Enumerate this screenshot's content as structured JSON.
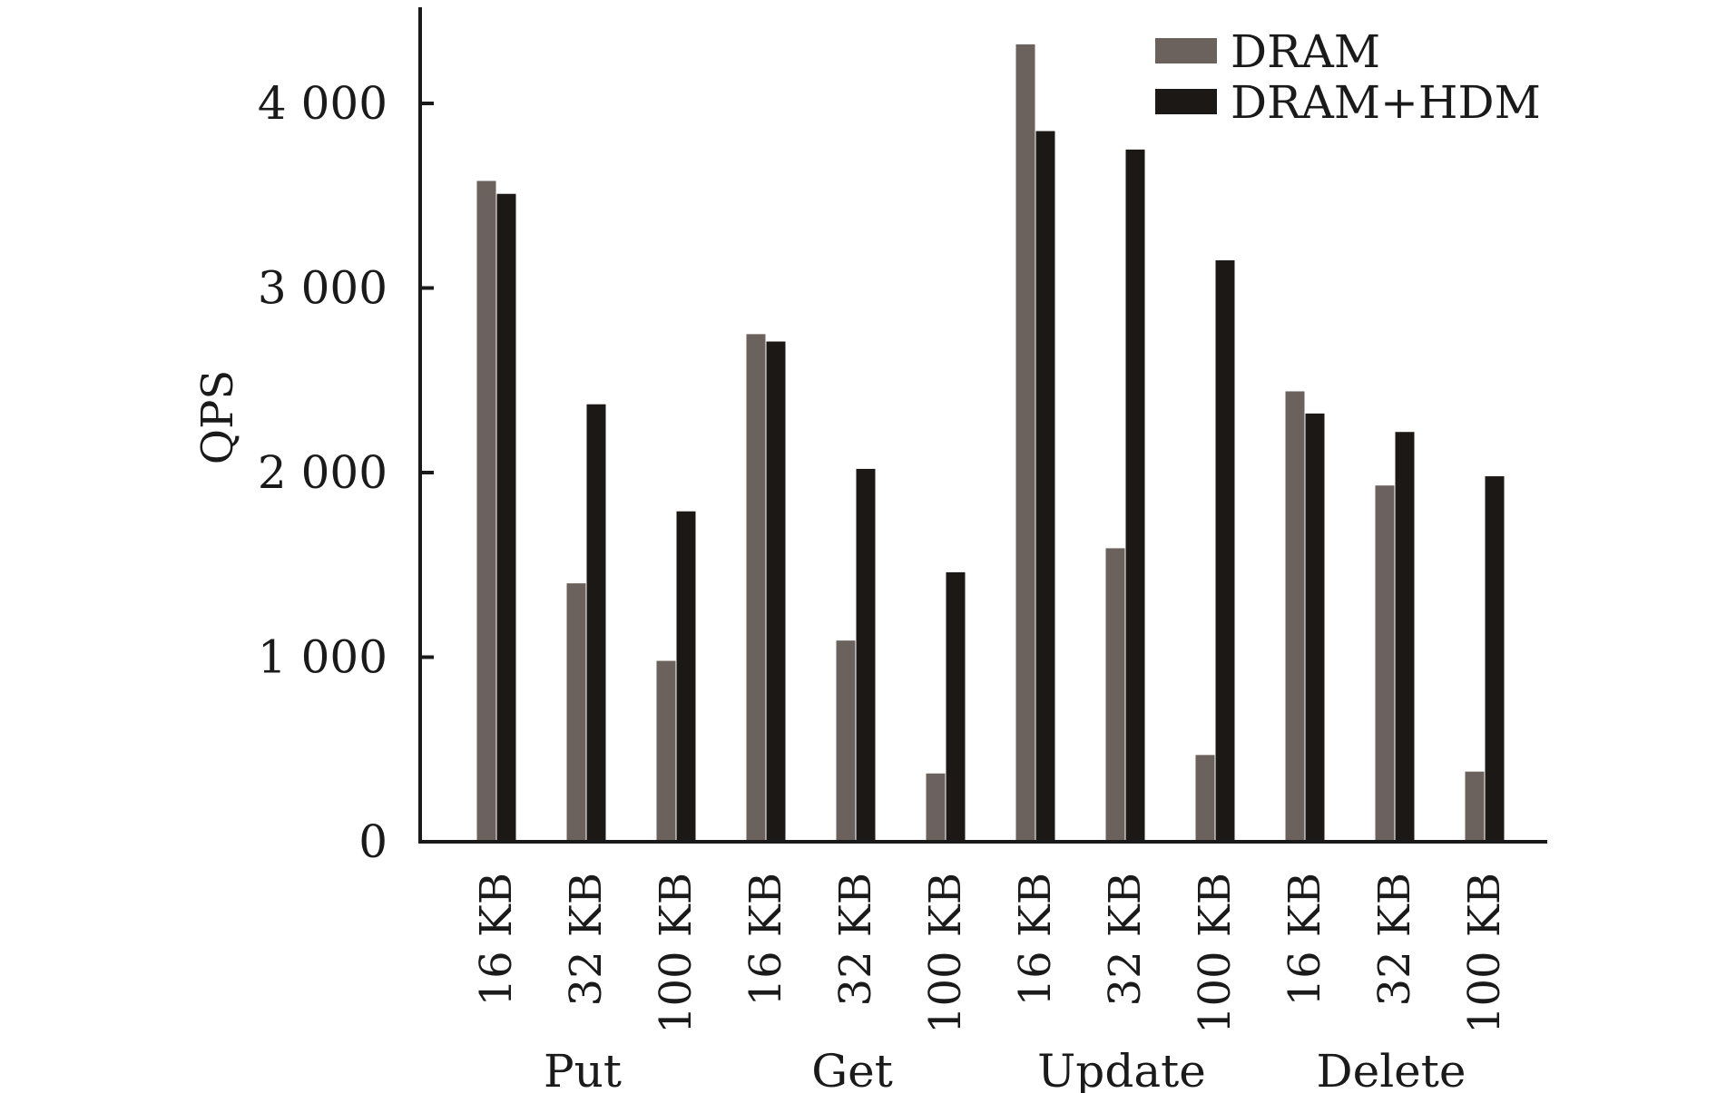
{
  "chart_data": {
    "type": "bar",
    "ylabel": "QPS",
    "xlabel": "",
    "ylim": [
      0,
      4500
    ],
    "yticks": [
      0,
      1000,
      2000,
      3000,
      4000
    ],
    "ytick_labels": [
      "0",
      "1 000",
      "2 000",
      "3 000",
      "4 000"
    ],
    "categories": [
      "16 KB",
      "32 KB",
      "100 KB",
      "16 KB",
      "32 KB",
      "100 KB",
      "16 KB",
      "32 KB",
      "100 KB",
      "16 KB",
      "32 KB",
      "100 KB"
    ],
    "groups": [
      {
        "label": "Put",
        "start": 0,
        "count": 3
      },
      {
        "label": "Get",
        "start": 3,
        "count": 3
      },
      {
        "label": "Update",
        "start": 6,
        "count": 3
      },
      {
        "label": "Delete",
        "start": 9,
        "count": 3
      }
    ],
    "series": [
      {
        "name": "DRAM",
        "color": "#6b625d",
        "values": [
          3580,
          1400,
          980,
          2750,
          1090,
          370,
          4320,
          1590,
          470,
          2440,
          1930,
          380
        ]
      },
      {
        "name": "DRAM+HDM",
        "color": "#1c1815",
        "values": [
          3510,
          2370,
          1790,
          2710,
          2020,
          1460,
          3850,
          3750,
          3150,
          2320,
          2220,
          1980
        ]
      }
    ],
    "legend_position": "top-right",
    "grid": false
  }
}
